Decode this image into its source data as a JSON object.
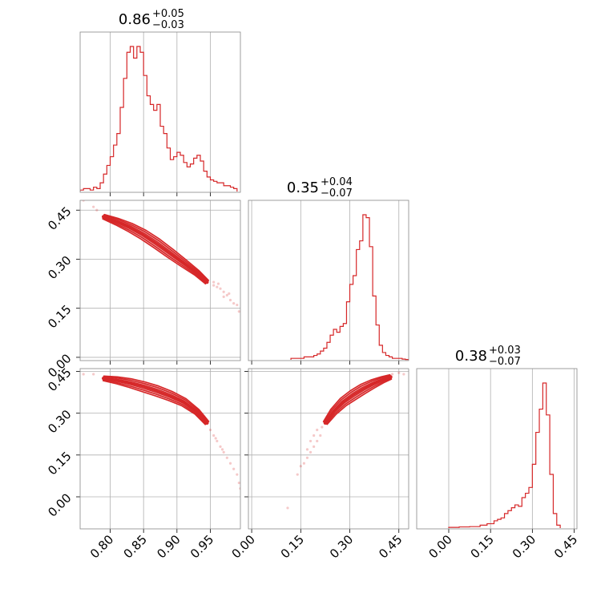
{
  "colors": {
    "series": "#d62728",
    "fill": "#f4c3c6",
    "grid": "#b0b0b0",
    "frame": "#888888"
  },
  "chart_data": {
    "type": "corner",
    "parameters": [
      {
        "title": {
          "median": "0.86",
          "upper": "+0.05",
          "lower": "−0.03"
        },
        "range": [
          0.755,
          0.995
        ],
        "ticks": [
          "0.80",
          "0.85",
          "0.90",
          "0.95"
        ],
        "tick_values": [
          0.8,
          0.85,
          0.9,
          0.95
        ],
        "hist": {
          "edges_start": 0.755,
          "bin_width": 0.005,
          "values": [
            0.01,
            0.02,
            0.02,
            0.01,
            0.03,
            0.02,
            0.06,
            0.12,
            0.18,
            0.24,
            0.32,
            0.4,
            0.58,
            0.78,
            0.96,
            1.0,
            0.92,
            1.0,
            0.96,
            0.8,
            0.66,
            0.6,
            0.56,
            0.6,
            0.45,
            0.4,
            0.3,
            0.22,
            0.24,
            0.27,
            0.25,
            0.2,
            0.17,
            0.19,
            0.23,
            0.25,
            0.21,
            0.14,
            0.1,
            0.08,
            0.07,
            0.06,
            0.06,
            0.04,
            0.04,
            0.03,
            0.02
          ]
        }
      },
      {
        "title": {
          "median": "0.35",
          "upper": "+0.04",
          "lower": "−0.07"
        },
        "range": [
          -0.01,
          0.48
        ],
        "ticks": [
          "0.00",
          "0.15",
          "0.30",
          "0.45"
        ],
        "tick_values": [
          0.0,
          0.15,
          0.3,
          0.45
        ],
        "hist": {
          "edges_start": 0.12,
          "bin_width": 0.01,
          "values": [
            0.01,
            0.01,
            0.01,
            0.01,
            0.02,
            0.02,
            0.02,
            0.03,
            0.04,
            0.06,
            0.08,
            0.12,
            0.17,
            0.21,
            0.19,
            0.23,
            0.25,
            0.4,
            0.52,
            0.58,
            0.76,
            0.82,
            1.0,
            0.98,
            0.78,
            0.44,
            0.24,
            0.1,
            0.05,
            0.03,
            0.02,
            0.01,
            0.01,
            0.01,
            0.005,
            0.002
          ]
        }
      },
      {
        "title": {
          "median": "0.38",
          "upper": "+0.03",
          "lower": "−0.07"
        },
        "range": [
          -0.115,
          0.46
        ],
        "ticks": [
          "0.00",
          "0.15",
          "0.30",
          "0.45"
        ],
        "tick_values": [
          0.0,
          0.15,
          0.3,
          0.45
        ],
        "hist": {
          "edges_start": 0.0,
          "bin_width": 0.0125,
          "values": [
            0.005,
            0.005,
            0.005,
            0.008,
            0.008,
            0.008,
            0.01,
            0.01,
            0.01,
            0.02,
            0.02,
            0.03,
            0.03,
            0.05,
            0.06,
            0.07,
            0.1,
            0.12,
            0.14,
            0.16,
            0.15,
            0.21,
            0.24,
            0.28,
            0.44,
            0.66,
            0.82,
            1.0,
            0.78,
            0.37,
            0.1,
            0.02
          ]
        }
      }
    ],
    "pairs": [
      {
        "x": 0,
        "y": 1,
        "yrange": [
          -0.01,
          0.48
        ],
        "ridge": [
          [
            0.79,
            0.43
          ],
          [
            0.81,
            0.415
          ],
          [
            0.83,
            0.397
          ],
          [
            0.85,
            0.375
          ],
          [
            0.87,
            0.348
          ],
          [
            0.89,
            0.318
          ],
          [
            0.91,
            0.288
          ],
          [
            0.93,
            0.258
          ],
          [
            0.945,
            0.23
          ]
        ],
        "scatter": [
          [
            0.76,
            0.48
          ],
          [
            0.775,
            0.46
          ],
          [
            0.78,
            0.45
          ],
          [
            0.955,
            0.23
          ],
          [
            0.96,
            0.215
          ],
          [
            0.965,
            0.21
          ],
          [
            0.97,
            0.2
          ],
          [
            0.975,
            0.19
          ],
          [
            0.98,
            0.175
          ],
          [
            0.985,
            0.165
          ],
          [
            0.99,
            0.16
          ],
          [
            0.993,
            0.14
          ],
          [
            0.955,
            0.22
          ],
          [
            0.97,
            0.185
          ],
          [
            0.962,
            0.225
          ],
          [
            0.978,
            0.195
          ]
        ]
      },
      {
        "x": 0,
        "y": 2,
        "yrange": [
          -0.115,
          0.46
        ],
        "ridge": [
          [
            0.79,
            0.425
          ],
          [
            0.81,
            0.418
          ],
          [
            0.83,
            0.408
          ],
          [
            0.85,
            0.395
          ],
          [
            0.87,
            0.38
          ],
          [
            0.89,
            0.362
          ],
          [
            0.91,
            0.34
          ],
          [
            0.93,
            0.305
          ],
          [
            0.945,
            0.265
          ]
        ],
        "scatter": [
          [
            0.76,
            0.44
          ],
          [
            0.775,
            0.44
          ],
          [
            0.95,
            0.24
          ],
          [
            0.955,
            0.22
          ],
          [
            0.96,
            0.2
          ],
          [
            0.965,
            0.18
          ],
          [
            0.97,
            0.16
          ],
          [
            0.975,
            0.14
          ],
          [
            0.98,
            0.12
          ],
          [
            0.985,
            0.1
          ],
          [
            0.99,
            0.08
          ],
          [
            0.993,
            0.05
          ],
          [
            0.995,
            0.03
          ],
          [
            0.958,
            0.21
          ],
          [
            0.968,
            0.17
          ]
        ]
      },
      {
        "x": 1,
        "y": 2,
        "yrange": [
          -0.115,
          0.46
        ],
        "ridge": [
          [
            0.225,
            0.265
          ],
          [
            0.25,
            0.305
          ],
          [
            0.28,
            0.34
          ],
          [
            0.31,
            0.365
          ],
          [
            0.34,
            0.387
          ],
          [
            0.37,
            0.405
          ],
          [
            0.4,
            0.42
          ],
          [
            0.425,
            0.43
          ]
        ],
        "scatter": [
          [
            0.11,
            -0.04
          ],
          [
            0.14,
            0.08
          ],
          [
            0.15,
            0.11
          ],
          [
            0.16,
            0.12
          ],
          [
            0.17,
            0.14
          ],
          [
            0.18,
            0.16
          ],
          [
            0.19,
            0.18
          ],
          [
            0.2,
            0.2
          ],
          [
            0.21,
            0.22
          ],
          [
            0.18,
            0.2
          ],
          [
            0.19,
            0.22
          ],
          [
            0.17,
            0.17
          ],
          [
            0.2,
            0.24
          ],
          [
            0.215,
            0.25
          ],
          [
            0.43,
            0.44
          ],
          [
            0.45,
            0.445
          ],
          [
            0.465,
            0.44
          ]
        ]
      }
    ]
  }
}
